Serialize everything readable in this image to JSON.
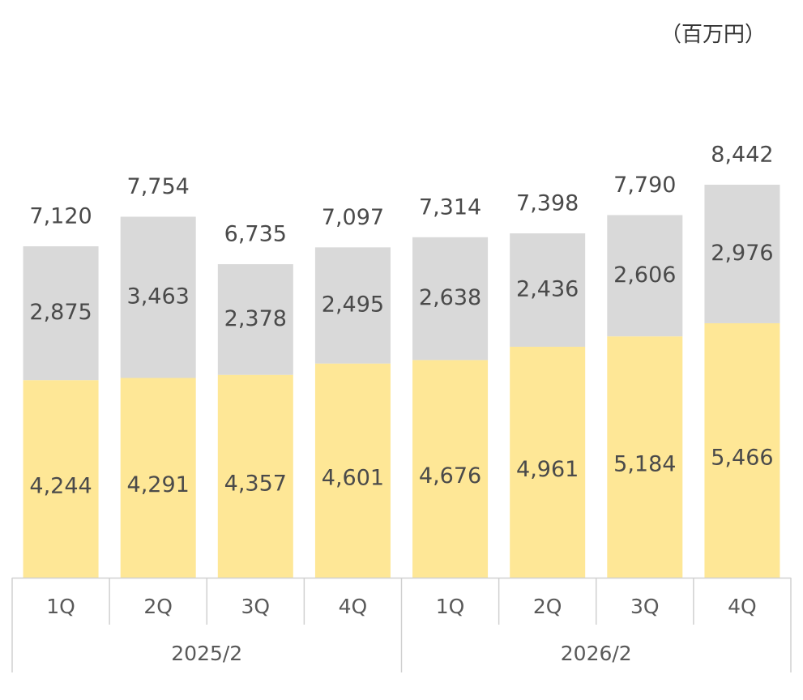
{
  "unit_label": "（百万円）",
  "colors": {
    "bottom": "#fee796",
    "top": "#d9d9d9",
    "axis": "#d0d0d0",
    "text": "#4a4a4a"
  },
  "chart_data": {
    "type": "bar",
    "stacked": true,
    "categories": [
      "1Q",
      "2Q",
      "3Q",
      "4Q",
      "1Q",
      "2Q",
      "3Q",
      "4Q"
    ],
    "groups": [
      {
        "label": "2025/2",
        "quarters": [
          "1Q",
          "2Q",
          "3Q",
          "4Q"
        ]
      },
      {
        "label": "2026/2",
        "quarters": [
          "1Q",
          "2Q",
          "3Q",
          "4Q"
        ]
      }
    ],
    "series": [
      {
        "values": [
          4244,
          4291,
          4357,
          4601,
          4676,
          4961,
          5184,
          5466
        ],
        "color": "#fee796"
      },
      {
        "values": [
          2875,
          3463,
          2378,
          2495,
          2638,
          2436,
          2606,
          2976
        ],
        "color": "#d9d9d9"
      }
    ],
    "totals": [
      7120,
      7754,
      6735,
      7097,
      7314,
      7398,
      7790,
      8442
    ],
    "ylim": [
      0,
      8442
    ],
    "grid": false,
    "legend": "none"
  }
}
